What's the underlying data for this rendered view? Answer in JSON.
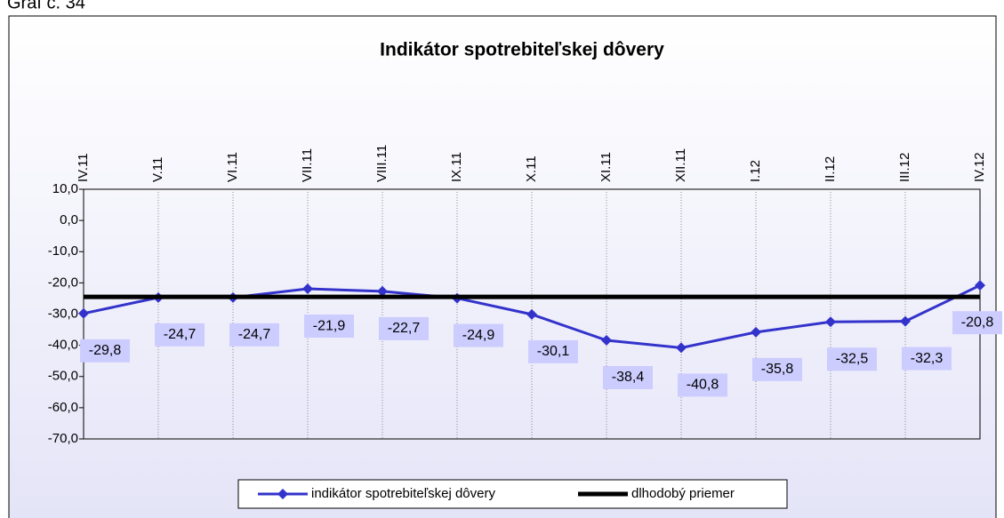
{
  "caption": "Graf č. 34",
  "chart_data": {
    "type": "line",
    "title": "Indikátor spotrebiteľskej dôvery",
    "categories": [
      "IV.11",
      "V.11",
      "VI.11",
      "VII.11",
      "VIII.11",
      "IX.11",
      "X.11",
      "XI.11",
      "XII.11",
      "I.12",
      "II.12",
      "III.12",
      "IV.12"
    ],
    "series": [
      {
        "name": "indikátor spotrebiteľskej dôvery",
        "color": "#3333cc",
        "values": [
          -29.8,
          -24.7,
          -24.7,
          -21.9,
          -22.7,
          -24.9,
          -30.1,
          -38.4,
          -40.8,
          -35.8,
          -32.5,
          -32.3,
          -20.8
        ],
        "value_labels": [
          "-29,8",
          "-24,7",
          "-24,7",
          "-21,9",
          "-22,7",
          "-24,9",
          "-30,1",
          "-38,4",
          "-40,8",
          "-35,8",
          "-32,5",
          "-32,3",
          "-20,8"
        ]
      },
      {
        "name": "dlhodobý priemer",
        "color": "#000000",
        "values": [
          -24.5,
          -24.5,
          -24.5,
          -24.5,
          -24.5,
          -24.5,
          -24.5,
          -24.5,
          -24.5,
          -24.5,
          -24.5,
          -24.5,
          -24.5
        ]
      }
    ],
    "ylim": [
      -70,
      10
    ],
    "yticks": [
      {
        "value": -70,
        "label": "-70,0"
      },
      {
        "value": -60,
        "label": "-60,0"
      },
      {
        "value": -50,
        "label": "-50,0"
      },
      {
        "value": -40,
        "label": "-40,0"
      },
      {
        "value": -30,
        "label": "-30,0"
      },
      {
        "value": -20,
        "label": "-20,0"
      },
      {
        "value": -10,
        "label": "-10,0"
      },
      {
        "value": 0,
        "label": "0,0"
      },
      {
        "value": 10,
        "label": "10,0"
      }
    ],
    "grid": "vertical",
    "legend": "bottom"
  }
}
